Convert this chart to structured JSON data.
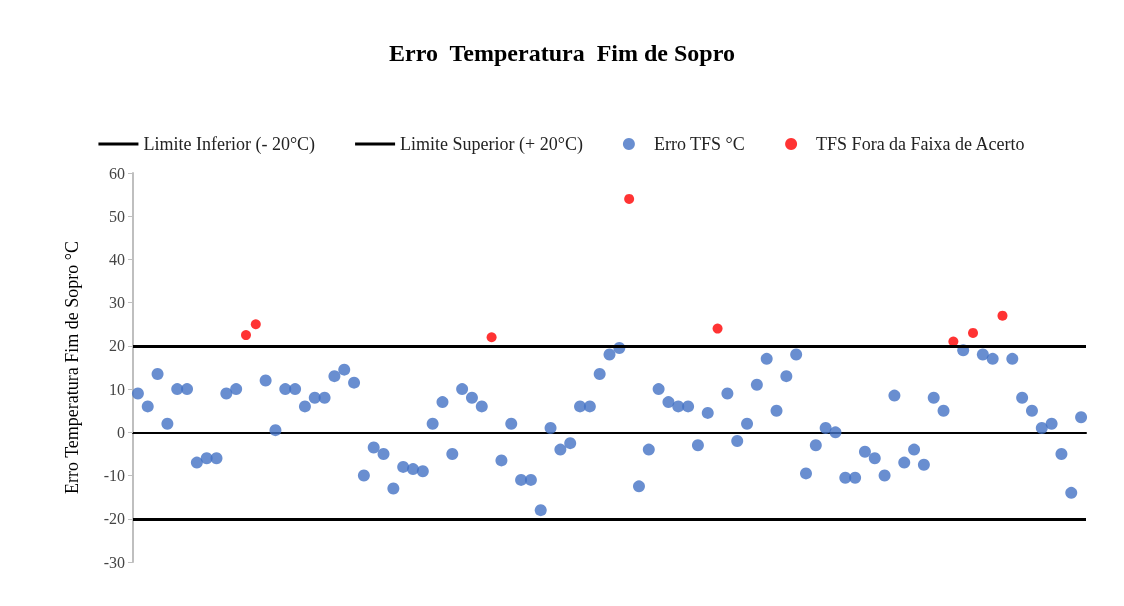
{
  "chart_data": {
    "type": "scatter",
    "title": "Erro  Temperatura  Fim de Sopro",
    "ylabel": "Erro Temperatura Fim de Sopro °C",
    "categories": [
      null,
      null,
      null,
      null,
      null,
      null,
      null,
      null,
      null,
      null,
      null,
      null,
      null,
      null,
      null,
      null,
      null,
      null,
      null,
      null,
      null,
      null,
      null,
      null,
      null,
      null,
      null,
      null,
      null,
      null,
      null,
      null,
      null,
      null,
      null,
      null,
      null,
      null,
      null,
      null,
      null,
      null,
      null,
      null,
      null,
      null,
      null,
      null,
      null,
      null,
      null,
      null,
      null,
      null,
      null,
      null,
      null,
      null,
      null,
      null,
      null,
      null,
      null,
      null,
      null,
      null,
      null,
      null,
      null,
      null,
      null,
      null,
      null,
      null,
      null,
      null,
      null,
      null,
      null,
      null,
      null,
      null,
      null,
      null,
      null,
      null,
      null,
      null,
      null,
      null,
      null,
      null,
      null,
      null,
      null,
      null,
      null
    ],
    "series": [
      {
        "name": "Erro TFS °C",
        "color": "#4472c4",
        "values": [
          9,
          6,
          13.5,
          2,
          10,
          10,
          -7,
          -6,
          -6,
          9,
          10,
          null,
          null,
          12,
          0.5,
          10,
          10,
          6,
          8,
          8,
          13,
          14.5,
          11.5,
          -10,
          -3.5,
          -5,
          -13,
          -8,
          -8.5,
          -9,
          2,
          7,
          -5,
          10,
          8,
          6,
          null,
          -6.5,
          2,
          -11,
          -11,
          -18,
          1,
          -4,
          -2.5,
          6,
          6,
          13.5,
          18,
          19.5,
          null,
          -12.5,
          -4,
          10,
          7,
          6,
          6,
          -3,
          4.5,
          null,
          9,
          -2,
          2,
          11,
          17,
          5,
          13,
          18,
          -9.5,
          -3,
          1,
          0,
          -10.5,
          -10.5,
          -4.5,
          -6,
          -10,
          8.5,
          -7,
          -4,
          -7.5,
          8,
          5,
          null,
          19,
          null,
          18,
          17,
          null,
          17,
          8,
          5,
          1,
          2,
          -5,
          -14,
          3.5
        ]
      },
      {
        "name": "TFS Fora da Faixa de Acerto",
        "color": "#ff0000",
        "values": [
          null,
          null,
          null,
          null,
          null,
          null,
          null,
          null,
          null,
          null,
          null,
          22.5,
          25,
          null,
          null,
          null,
          null,
          null,
          null,
          null,
          null,
          null,
          null,
          null,
          null,
          null,
          null,
          null,
          null,
          null,
          null,
          null,
          null,
          null,
          null,
          null,
          22,
          null,
          null,
          null,
          null,
          null,
          null,
          null,
          null,
          null,
          null,
          null,
          null,
          null,
          54,
          null,
          null,
          null,
          null,
          null,
          null,
          null,
          null,
          24,
          null,
          null,
          null,
          null,
          null,
          null,
          null,
          null,
          null,
          null,
          null,
          null,
          null,
          null,
          null,
          null,
          null,
          null,
          null,
          null,
          null,
          null,
          null,
          21,
          null,
          23,
          null,
          null,
          27,
          null,
          null,
          null,
          null,
          null,
          null,
          null,
          null
        ]
      }
    ],
    "ref_lines": [
      {
        "axis": "y",
        "value": -20,
        "label": "Limite Inferior (- 20°C)",
        "color": "#000000"
      },
      {
        "axis": "y",
        "value": 20,
        "label": "Limite Superior (+ 20°C)",
        "color": "#000000"
      }
    ],
    "ylim": [
      -30,
      60
    ],
    "yticks": [
      -30,
      -20,
      -10,
      0,
      10,
      20,
      30,
      40,
      50,
      60
    ],
    "grid": false,
    "legend": "top",
    "marker": "circle",
    "tick_labels": "y"
  }
}
